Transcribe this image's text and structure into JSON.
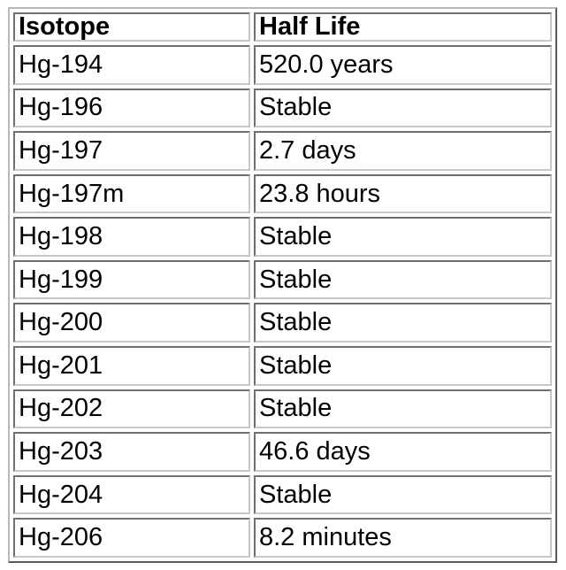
{
  "table": {
    "headers": {
      "isotope": "Isotope",
      "half_life": "Half Life"
    },
    "rows": [
      {
        "isotope": "Hg-194",
        "half_life": "520.0 years"
      },
      {
        "isotope": "Hg-196",
        "half_life": "Stable"
      },
      {
        "isotope": "Hg-197",
        "half_life": "2.7 days"
      },
      {
        "isotope": "Hg-197m",
        "half_life": "23.8 hours"
      },
      {
        "isotope": "Hg-198",
        "half_life": "Stable"
      },
      {
        "isotope": "Hg-199",
        "half_life": "Stable"
      },
      {
        "isotope": "Hg-200",
        "half_life": "Stable"
      },
      {
        "isotope": "Hg-201",
        "half_life": "Stable"
      },
      {
        "isotope": "Hg-202",
        "half_life": "Stable"
      },
      {
        "isotope": "Hg-203",
        "half_life": "46.6 days"
      },
      {
        "isotope": "Hg-204",
        "half_life": "Stable"
      },
      {
        "isotope": "Hg-206",
        "half_life": "8.2 minutes"
      }
    ]
  }
}
